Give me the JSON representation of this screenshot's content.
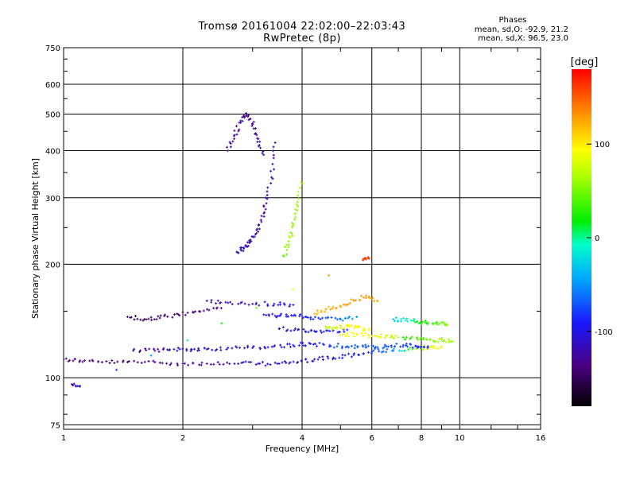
{
  "chart_data": {
    "type": "scatter",
    "title": "Tromsø 20161004 22:02:00–22:03:43",
    "subtitle": "RwPretec (8p)",
    "xlabel": "Frequency [MHz]",
    "ylabel": "Stationary phase Virtual Height [km]",
    "x_scale": "log",
    "y_scale": "log",
    "xlim": [
      1,
      16
    ],
    "ylim": [
      73,
      750
    ],
    "x_ticks": [
      "1",
      "2",
      "4",
      "6",
      "8",
      "10",
      "16"
    ],
    "y_ticks": [
      "75",
      "100",
      "200",
      "300",
      "400",
      "500",
      "600",
      "750"
    ],
    "grid": true,
    "stats": {
      "title": "Phases",
      "line1": "mean, sd,O:  -92.9, 21.2",
      "line2": "mean, sd,X:  96.5, 23.0"
    },
    "colorbar": {
      "label": "[deg]",
      "range": [
        -180,
        180
      ],
      "ticks": [
        "100",
        "0",
        "-100"
      ],
      "colormap": "rainbow"
    },
    "series": [
      {
        "x": [
          1.0,
          1.1,
          1.25,
          1.45,
          1.7,
          2.0,
          2.3,
          2.7,
          3.1,
          3.5,
          3.9,
          4.3,
          4.8,
          5.4,
          6.0,
          6.8,
          7.6,
          8.4,
          9.0
        ],
        "y": [
          112,
          111,
          110,
          110,
          110,
          109,
          109,
          109,
          109,
          109,
          110,
          112,
          113,
          115,
          117,
          118,
          119,
          120,
          121
        ],
        "phase": [
          -135,
          -140,
          -142,
          -140,
          -135,
          -128,
          -122,
          -118,
          -116,
          -113,
          -110,
          -106,
          -100,
          -92,
          -80,
          -55,
          40,
          90,
          100
        ]
      },
      {
        "x": [
          1.5,
          1.7,
          1.9,
          2.1,
          2.3,
          2.6,
          3.0,
          3.4,
          3.8,
          4.2,
          4.7,
          5.2,
          5.7,
          6.1,
          6.6,
          7.2,
          7.8,
          8.3
        ],
        "y": [
          118,
          118,
          119,
          119,
          119,
          120,
          120,
          121,
          122,
          123,
          122,
          121,
          121,
          120,
          121,
          122,
          121,
          120
        ],
        "phase": [
          -125,
          -122,
          -118,
          -114,
          -112,
          -108,
          -104,
          -100,
          -96,
          -90,
          -82,
          -74,
          -70,
          -68,
          -72,
          -78,
          -85,
          -88
        ]
      },
      {
        "x": [
          1.45,
          1.6,
          1.75,
          1.95,
          2.2,
          2.5
        ],
        "y": [
          145,
          143,
          144,
          147,
          150,
          153
        ],
        "phase": [
          -150,
          -148,
          -145,
          -142,
          -138,
          -132
        ]
      },
      {
        "x": [
          2.3,
          2.6,
          3.0,
          3.4,
          3.8
        ],
        "y": [
          160,
          158,
          157,
          157,
          156
        ],
        "phase": [
          -118,
          -115,
          -110,
          -105,
          -100
        ]
      },
      {
        "x": [
          3.2,
          3.5,
          3.8,
          4.1,
          4.5,
          5.0,
          5.5
        ],
        "y": [
          147,
          146,
          146,
          145,
          144,
          143,
          145
        ],
        "phase": [
          -105,
          -100,
          -95,
          -90,
          -80,
          -60,
          -40
        ]
      },
      {
        "x": [
          3.5,
          3.9,
          4.3,
          4.7,
          5.2
        ],
        "y": [
          135,
          134,
          133,
          133,
          134
        ],
        "phase": [
          -108,
          -105,
          -98,
          -92,
          -84
        ]
      },
      {
        "x": [
          2.75,
          2.85,
          2.95,
          3.05,
          3.15,
          3.25,
          3.35,
          3.42
        ],
        "y": [
          215,
          220,
          228,
          240,
          262,
          290,
          340,
          420
        ],
        "phase": [
          -115,
          -118,
          -122,
          -125,
          -126,
          -127,
          -126,
          -124
        ]
      },
      {
        "x": [
          3.6,
          3.7,
          3.8,
          3.9,
          3.98
        ],
        "y": [
          210,
          230,
          255,
          285,
          330
        ],
        "phase": [
          45,
          55,
          60,
          62,
          65
        ]
      },
      {
        "x": [
          4.3,
          4.6,
          5.0,
          5.4,
          5.8,
          6.2
        ],
        "y": [
          148,
          152,
          155,
          160,
          165,
          160
        ],
        "phase": [
          115,
          120,
          125,
          130,
          128,
          122
        ]
      },
      {
        "x": [
          4.6,
          4.9,
          5.2,
          5.5,
          5.9
        ],
        "y": [
          135,
          136,
          137,
          136,
          134
        ],
        "phase": [
          70,
          80,
          90,
          95,
          92
        ]
      },
      {
        "x": [
          5.0,
          5.5,
          6.0,
          6.5,
          7.0
        ],
        "y": [
          130,
          130,
          129,
          129,
          128
        ],
        "phase": [
          95,
          92,
          88,
          80,
          70
        ]
      },
      {
        "x": [
          6.8,
          7.3,
          7.8,
          8.3,
          8.9,
          9.3
        ],
        "y": [
          143,
          142,
          141,
          140,
          139,
          138
        ],
        "phase": [
          -35,
          -10,
          15,
          30,
          45,
          55
        ]
      },
      {
        "x": [
          7.2,
          7.8,
          8.4,
          9.0,
          9.6
        ],
        "y": [
          128,
          127,
          126,
          126,
          125
        ],
        "phase": [
          20,
          40,
          55,
          62,
          65
        ]
      },
      {
        "x": [
          2.6,
          2.7,
          2.8,
          2.9,
          3.0,
          3.1,
          3.2
        ],
        "y": [
          400,
          440,
          480,
          500,
          470,
          430,
          390
        ],
        "phase": [
          -125,
          -128,
          -130,
          -128,
          -126,
          -124,
          -122
        ]
      },
      {
        "x": [
          1.05,
          1.1,
          5.7,
          5.9
        ],
        "y": [
          96,
          95,
          205,
          207
        ],
        "phase": [
          -120,
          -118,
          160,
          165
        ]
      }
    ]
  }
}
